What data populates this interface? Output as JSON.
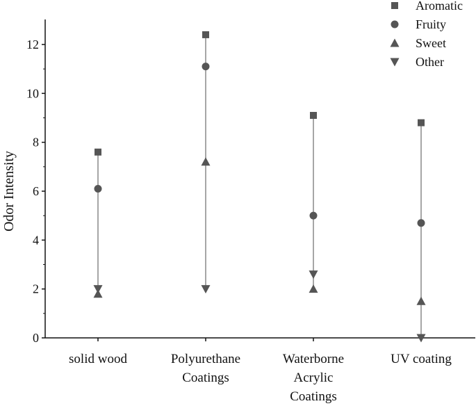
{
  "chart_data": {
    "type": "scatter",
    "title": "",
    "xlabel": "",
    "ylabel": "Odor Intensity",
    "ylim": [
      0,
      13
    ],
    "yticks": [
      0,
      2,
      4,
      6,
      8,
      10,
      12
    ],
    "categories": [
      [
        "solid wood"
      ],
      [
        "Polyurethane",
        "Coatings"
      ],
      [
        "Waterborne",
        "Acrylic",
        "Coatings"
      ],
      [
        "UV coating"
      ]
    ],
    "series": [
      {
        "name": "Aromatic",
        "marker": "square",
        "values": [
          7.6,
          12.4,
          9.1,
          8.8
        ]
      },
      {
        "name": "Fruity",
        "marker": "circle",
        "values": [
          6.1,
          11.1,
          5.0,
          4.7
        ]
      },
      {
        "name": "Sweet",
        "marker": "triangle-up",
        "values": [
          1.8,
          7.2,
          2.0,
          1.5
        ]
      },
      {
        "name": "Other",
        "marker": "triangle-down",
        "values": [
          2.0,
          2.0,
          2.6,
          0.0
        ]
      }
    ],
    "vertical_range_lines": true,
    "legend_position": "top-right",
    "grid": false,
    "colors": {
      "marker": "#555555",
      "line": "#888888",
      "axis": "#111111"
    }
  }
}
